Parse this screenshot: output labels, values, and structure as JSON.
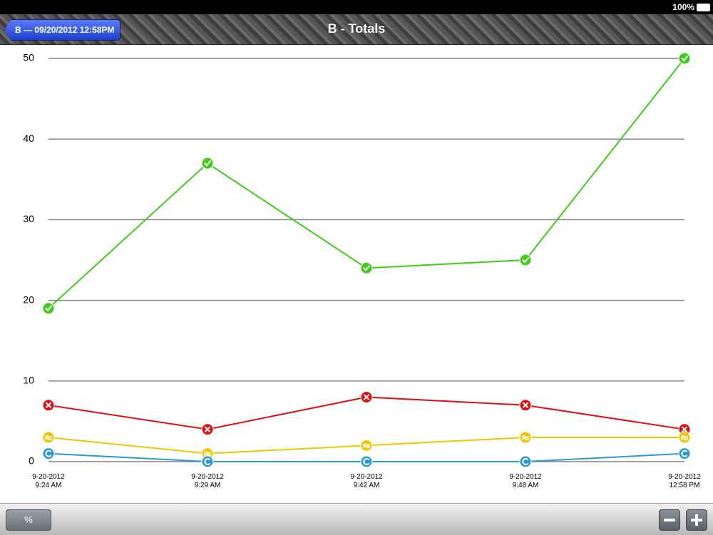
{
  "status_bar": {
    "battery": "100%"
  },
  "nav_bar": {
    "back_button": "B — 09/20/2012 12:58PM"
  },
  "toolbar": {
    "percent_button": "%"
  },
  "chart_data": {
    "type": "line",
    "title": "B - Totals",
    "categories": [
      "9-20-2012\n9:24 AM",
      "9-20-2012\n9:29 AM",
      "9-20-2012\n9:42 AM",
      "9-20-2012\n9:48 AM",
      "9-20-2012\n12:58 PM"
    ],
    "series": [
      {
        "color": "#3fcc1a",
        "values": [
          19,
          37,
          24,
          25,
          50
        ]
      },
      {
        "color": "#e01010",
        "values": [
          7,
          4,
          8,
          7,
          4
        ]
      },
      {
        "color": "#f5c400",
        "values": [
          3,
          1,
          2,
          3,
          3
        ]
      },
      {
        "color": "#2a9ad6",
        "values": [
          1,
          0,
          0,
          0,
          1
        ]
      }
    ],
    "ylim": [
      0,
      50
    ],
    "yticks": [
      0,
      10,
      20,
      30,
      40,
      50
    ],
    "grid": true
  }
}
